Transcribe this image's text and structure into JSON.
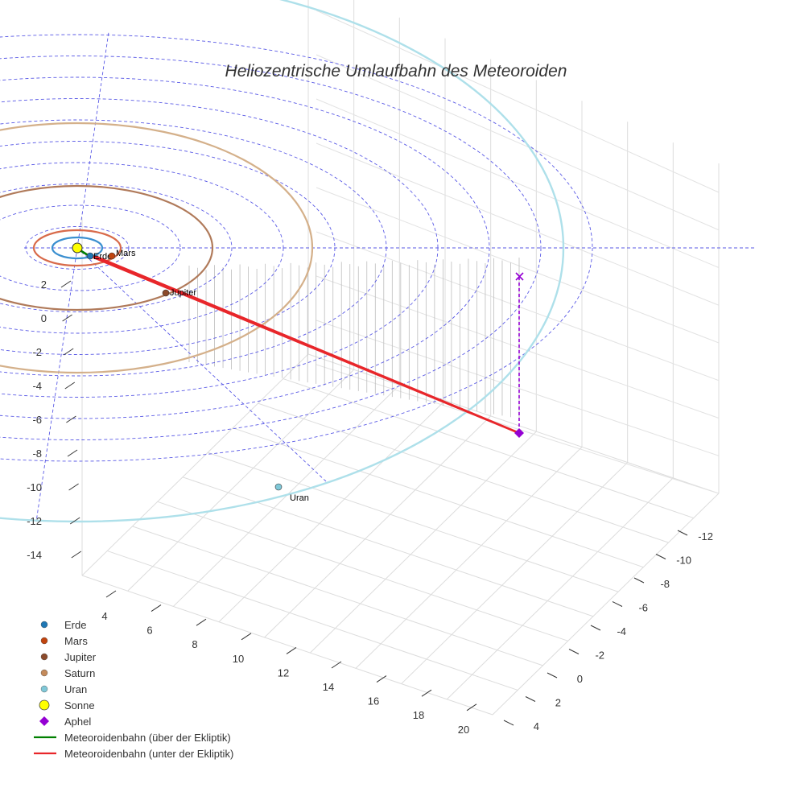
{
  "chart_data": {
    "type": "scatter3d",
    "title": "Heliozentrische Umlaufbahn des Meteoroiden",
    "axes": {
      "x": {
        "ticks": [
          4,
          6,
          8,
          10,
          12,
          14,
          16,
          18,
          20
        ]
      },
      "y": {
        "ticks": [
          -12,
          -10,
          -8,
          -6,
          -4,
          -2,
          0,
          2,
          4
        ]
      },
      "z": {
        "ticks": [
          2,
          0,
          -2,
          -4,
          -6,
          -8,
          -10,
          -12,
          -14
        ]
      }
    },
    "grid": true,
    "legend_position": "bottom-left",
    "planets": [
      {
        "name": "Erde",
        "label": "Erde",
        "color": "#1f77b4"
      },
      {
        "name": "Mars",
        "label": "Mars",
        "color": "#c1440e"
      },
      {
        "name": "Jupiter",
        "label": "Jupiter",
        "color": "#8b4a2b"
      },
      {
        "name": "Saturn",
        "label": "",
        "color": "#c48a5a"
      },
      {
        "name": "Uran",
        "label": "Uran",
        "color": "#7fc8d8"
      }
    ],
    "orbit_colors": {
      "Erde": "#3a8fd0",
      "Mars": "#d86a4a",
      "Jupiter": "#b07a5a",
      "Saturn": "#d4b08a",
      "Uran": "#aee0ea"
    },
    "sun": {
      "name": "Sonne",
      "color": "#ffff00"
    },
    "aphel": {
      "name": "Aphel",
      "color": "#9400d3"
    },
    "series": [
      {
        "name": "Meteoroidenbahn (über der Ekliptik)",
        "color": "#008000"
      },
      {
        "name": "Meteoroidenbahn (unter der Ekliptik)",
        "color": "#e8262a"
      }
    ]
  },
  "legend": [
    {
      "label": "Erde",
      "symbol": "dot",
      "color": "#1f77b4"
    },
    {
      "label": "Mars",
      "symbol": "dot",
      "color": "#c1440e"
    },
    {
      "label": "Jupiter",
      "symbol": "dot",
      "color": "#8b4a2b"
    },
    {
      "label": "Saturn",
      "symbol": "dot",
      "color": "#c48a5a"
    },
    {
      "label": "Uran",
      "symbol": "dot",
      "color": "#7fc8d8"
    },
    {
      "label": "Sonne",
      "symbol": "sun",
      "color": "#ffff00"
    },
    {
      "label": "Aphel",
      "symbol": "diamond",
      "color": "#9400d3"
    },
    {
      "label": "Meteoroidenbahn (über der Ekliptik)",
      "symbol": "line",
      "color": "#008000"
    },
    {
      "label": "Meteoroidenbahn (unter der Ekliptik)",
      "symbol": "line",
      "color": "#e8262a"
    }
  ]
}
